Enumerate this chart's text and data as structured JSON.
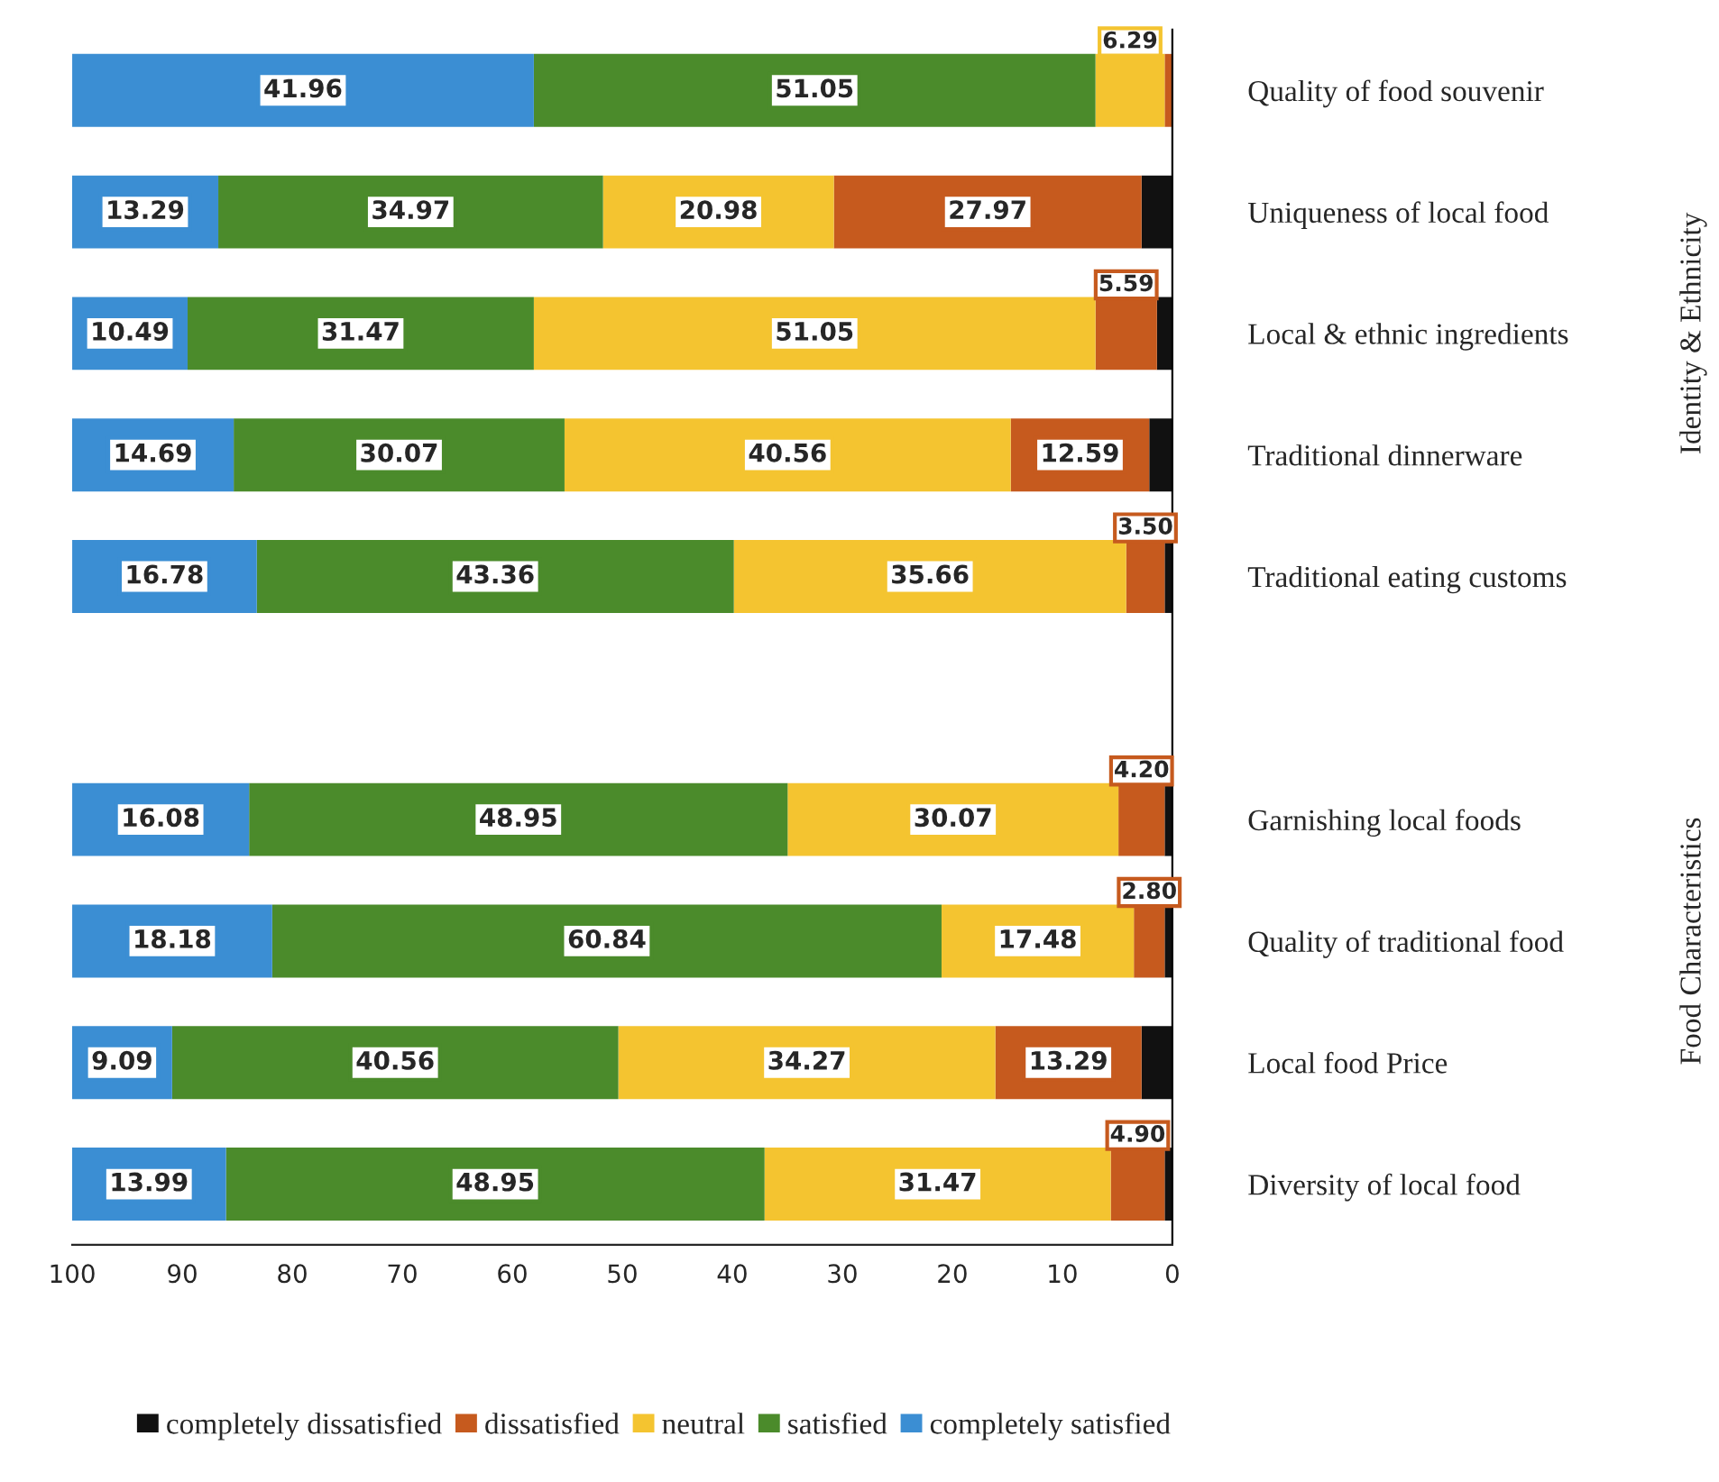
{
  "chart_data": {
    "type": "bar",
    "orientation": "horizontal",
    "stacked": true,
    "categories": [
      "Quality of food souvenir",
      "Uniqueness of local food",
      "Local & ethnic ingredients",
      "Traditional dinnerware",
      "Traditional eating customs",
      null,
      "Garnishing local foods",
      "Quality of traditional food",
      "Local food Price",
      "Diversity of local food"
    ],
    "series": [
      {
        "name": "completely dissatisfied",
        "color": "#111111",
        "values": [
          0,
          2.8,
          1.4,
          2.1,
          0.7,
          null,
          0.7,
          0.7,
          2.8,
          0.7
        ],
        "value_labels": [
          null,
          null,
          null,
          null,
          null,
          null,
          null,
          null,
          null,
          null
        ]
      },
      {
        "name": "dissatisfied",
        "color": "#c65a1e",
        "values": [
          0.7,
          27.97,
          5.59,
          12.59,
          3.5,
          null,
          4.2,
          2.8,
          13.29,
          4.9
        ],
        "value_labels": [
          null,
          "27.97",
          "5.59",
          "12.59",
          "3.50",
          null,
          "4.20",
          "2.80",
          "13.29",
          "4.90"
        ]
      },
      {
        "name": "neutral",
        "color": "#f4c430",
        "values": [
          6.29,
          20.98,
          51.05,
          40.56,
          35.66,
          null,
          30.07,
          17.48,
          34.27,
          31.47
        ],
        "value_labels": [
          "6.29",
          "20.98",
          "51.05",
          "40.56",
          "35.66",
          null,
          "30.07",
          "17.48",
          "34.27",
          "31.47"
        ]
      },
      {
        "name": "satisfied",
        "color": "#4b8b2b",
        "values": [
          51.05,
          34.97,
          31.47,
          30.07,
          43.36,
          null,
          48.95,
          60.84,
          40.56,
          48.95
        ],
        "value_labels": [
          "51.05",
          "34.97",
          "31.47",
          "30.07",
          "43.36",
          null,
          "48.95",
          "60.84",
          "40.56",
          "48.95"
        ]
      },
      {
        "name": "completely satisfied",
        "color": "#3b8ed3",
        "values": [
          41.96,
          13.29,
          10.49,
          14.69,
          16.78,
          null,
          16.08,
          18.18,
          9.09,
          13.99
        ],
        "value_labels": [
          "41.96",
          "13.29",
          "10.49",
          "14.69",
          "16.78",
          null,
          "16.08",
          "18.18",
          "9.09",
          "13.99"
        ]
      }
    ],
    "xlim": [
      100,
      0
    ],
    "xticks": [
      0,
      10,
      20,
      30,
      40,
      50,
      60,
      70,
      80,
      90,
      100
    ],
    "legend": "bottom",
    "grid": false,
    "annotations": [
      "Identity & Ethnicity",
      "Food Characteristics"
    ]
  }
}
